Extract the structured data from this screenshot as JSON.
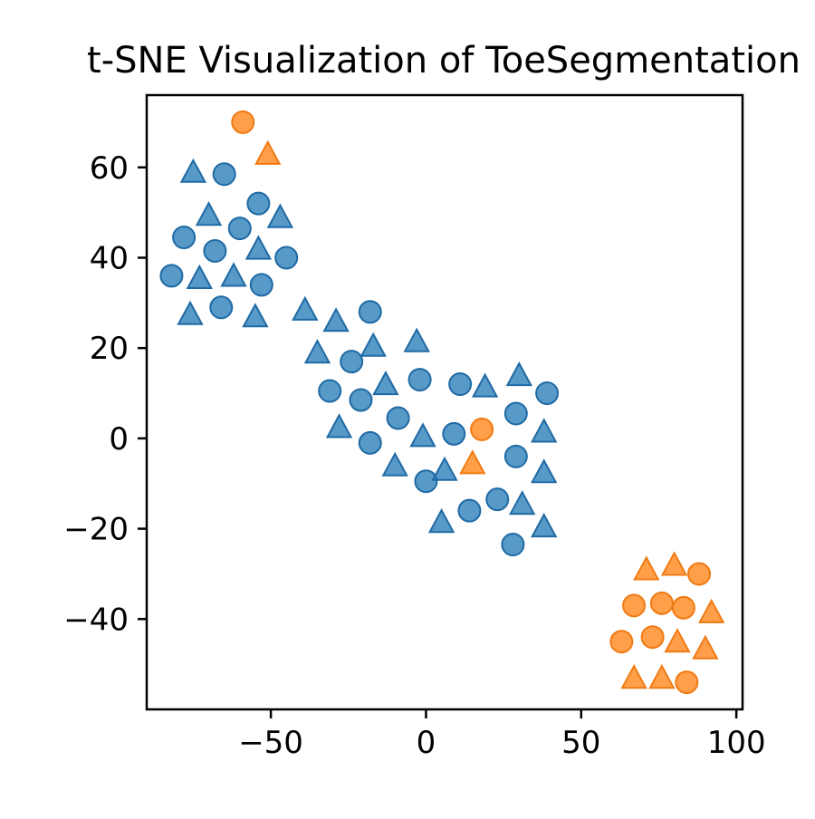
{
  "chart_data": {
    "type": "scatter",
    "title": "t-SNE Visualization of ToeSegmentation",
    "xlabel": "",
    "ylabel": "",
    "xlim": [
      -90,
      102
    ],
    "ylim": [
      -60,
      76
    ],
    "x_ticks": [
      -50,
      0,
      50,
      100
    ],
    "y_ticks": [
      -40,
      -20,
      0,
      20,
      40,
      60
    ],
    "x_tick_labels": [
      "−50",
      "0",
      "50",
      "100"
    ],
    "y_tick_labels": [
      "−40",
      "−20",
      "0",
      "20",
      "40",
      "60"
    ],
    "grid": false,
    "legend": "none",
    "series": [
      {
        "color": "#1f77b4",
        "marker": "circle",
        "points": [
          [
            -65,
            58.5
          ],
          [
            -54,
            52
          ],
          [
            -78,
            44.5
          ],
          [
            -68,
            41.5
          ],
          [
            -60,
            46.5
          ],
          [
            -82,
            36
          ],
          [
            -53,
            34
          ],
          [
            -45,
            40
          ],
          [
            -66,
            29
          ],
          [
            -18,
            28
          ],
          [
            -24,
            17
          ],
          [
            -31,
            10.5
          ],
          [
            -21,
            8.5
          ],
          [
            -9,
            4.5
          ],
          [
            -18,
            -1
          ],
          [
            -2,
            13
          ],
          [
            0,
            -9.5
          ],
          [
            11,
            12
          ],
          [
            9,
            1
          ],
          [
            29,
            5.5
          ],
          [
            39,
            10
          ],
          [
            29,
            -4
          ],
          [
            23,
            -13.5
          ],
          [
            14,
            -16
          ],
          [
            28,
            -23.5
          ]
        ]
      },
      {
        "color": "#1f77b4",
        "marker": "triangle",
        "points": [
          [
            -75,
            59
          ],
          [
            -70,
            49.5
          ],
          [
            -47,
            49
          ],
          [
            -54,
            42
          ],
          [
            -73,
            35.5
          ],
          [
            -62,
            36
          ],
          [
            -76,
            27.5
          ],
          [
            -55,
            27
          ],
          [
            -39,
            28.5
          ],
          [
            -29,
            26
          ],
          [
            -35,
            19
          ],
          [
            -17,
            20.5
          ],
          [
            -13,
            12
          ],
          [
            -28,
            2.5
          ],
          [
            -3,
            21.5
          ],
          [
            -1,
            0.5
          ],
          [
            -10,
            -6
          ],
          [
            6,
            -7
          ],
          [
            5,
            -18.5
          ],
          [
            19,
            11.5
          ],
          [
            30,
            14
          ],
          [
            38,
            1.5
          ],
          [
            38,
            -7.5
          ],
          [
            31,
            -14.5
          ],
          [
            38,
            -19.5
          ]
        ]
      },
      {
        "color": "#ff7f0e",
        "marker": "circle",
        "points": [
          [
            -59,
            70
          ],
          [
            18,
            2
          ],
          [
            88,
            -30
          ],
          [
            67,
            -37
          ],
          [
            76,
            -36.5
          ],
          [
            83,
            -37.5
          ],
          [
            63,
            -45
          ],
          [
            73,
            -44
          ],
          [
            84,
            -54
          ]
        ]
      },
      {
        "color": "#ff7f0e",
        "marker": "triangle",
        "points": [
          [
            -51,
            63
          ],
          [
            15,
            -5.5
          ],
          [
            71,
            -29
          ],
          [
            80,
            -28
          ],
          [
            92,
            -38.5
          ],
          [
            81,
            -45
          ],
          [
            90,
            -46.5
          ],
          [
            67,
            -53
          ],
          [
            76,
            -53
          ]
        ]
      }
    ]
  }
}
